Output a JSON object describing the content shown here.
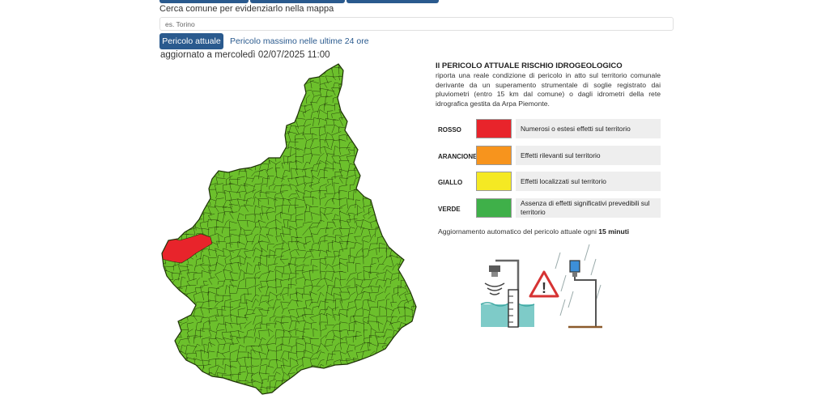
{
  "search": {
    "label": "Cerca comune per evidenziarlo nella mappa",
    "placeholder": "es. Torino"
  },
  "tabs": {
    "active": "Pericolo attuale",
    "other": "Pericolo massimo nelle ultime 24 ore"
  },
  "updated": "aggiornato a mercoledì 02/07/2025 11:00",
  "map": {
    "colors": {
      "green": "#6cc02c",
      "red": "#e8242b",
      "border": "#1f3308"
    }
  },
  "info": {
    "title": "Il PERICOLO ATTUALE RISCHIO IDROGEOLOGICO",
    "text": "riporta una reale condizione di pericolo in atto sul territorio comunale derivante da un superamento strumentale di soglie registrato dai pluviometri (entro 15 km dal comune) o dagli idrometri della rete idrografica gestita da Arpa Piemonte."
  },
  "legend": [
    {
      "name": "ROSSO",
      "color": "#e8242b",
      "desc": "Numerosi o estesi effetti sul territorio"
    },
    {
      "name": "ARANCIONE",
      "color": "#f7941d",
      "desc": "Effetti rilevanti sul territorio"
    },
    {
      "name": "GIALLO",
      "color": "#f5e923",
      "desc": "Effetti localizzati sul territorio"
    },
    {
      "name": "VERDE",
      "color": "#3fb049",
      "desc": "Assenza di effetti significativi prevedibili sul territorio"
    }
  ],
  "auto_update": {
    "prefix": "Aggiornamento automatico  del pericolo attuale ogni",
    "value": "15 minuti"
  },
  "illustration": {
    "icons": [
      "hydrometer-icon",
      "warning-icon",
      "rain-gauge-icon"
    ],
    "warning_symbol": "!"
  }
}
